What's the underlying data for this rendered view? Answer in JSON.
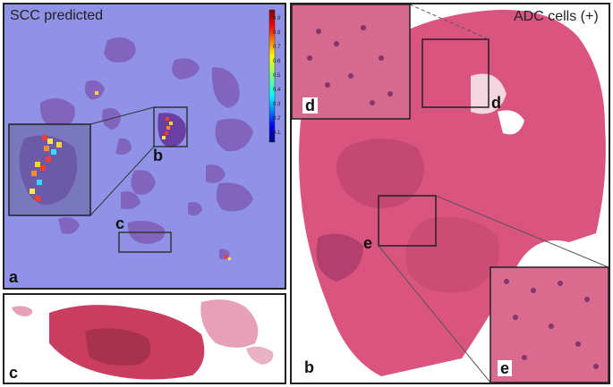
{
  "panel_a": {
    "title": "SCC predicted",
    "label": "a",
    "roi_b_label": "b",
    "roi_c_label": "c",
    "colorbar": {
      "ticks": [
        "0.9",
        "0.8",
        "0.7",
        "0.6",
        "0.5",
        "0.4",
        "0.3",
        "0.2",
        "0.1"
      ],
      "colormap": "jet",
      "range": [
        0,
        1
      ]
    },
    "background_color": "#8f92e6"
  },
  "panel_b": {
    "title": "ADC cells (+)",
    "label": "b",
    "roi_d_label": "d",
    "roi_e_label": "e",
    "inset_d_label": "d",
    "inset_e_label": "e"
  },
  "panel_c": {
    "label": "c"
  },
  "colors": {
    "tissue_he": "#d9557f",
    "tissue_dark": "#9b2f63",
    "heatmap_bg": "#8f92e6"
  }
}
